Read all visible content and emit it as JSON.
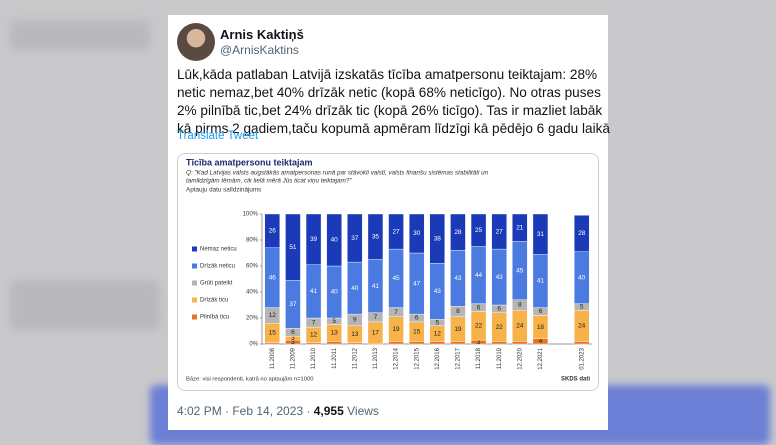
{
  "tweet": {
    "author": "Arnis Kaktiņš",
    "handle": "@ArnisKaktins",
    "text_lines": [
      "Lūk,kāda patlaban Latvijā izskatās tīcība amatpersonu teiktajam: 28%",
      "netic nemaz,bet 40% drīzāk netic (kopā 68% neticīgo). No otras puses",
      "2% pilnībā tic,bet 24% drīzāk tic (kopā 26% ticīgo). Tas ir mazliet labāk",
      "kā pirms 2 gadiem,taču kopumā apmēram līdzīgi kā pēdējo 6 gadu laikā"
    ],
    "translate": "Translate Tweet",
    "datetime": "4:02 PM · Feb 14, 2023 ·",
    "views": "4,955",
    "views_label": "Views"
  },
  "chart_data": {
    "type": "stacked-bar",
    "title": "Tīcība amatpersonu teiktajam",
    "question_lines": [
      "Q: \"Kad Latvijas valsts augstākās amatpersonas runā par stāvokli valstī, valsts finanšu sistēmas stabilitāti un",
      "tamlīdzīgām tēmām, cik lielā mērā Jūs ticat viņu teiktajam?\""
    ],
    "subtitle": "Aptauju datu salīdzinājums",
    "base_note": "Bāze: visi respondenti, katrā no aptaujām n=1000",
    "source": "SKDS dati",
    "categories": [
      "11.2008",
      "11.2009",
      "11.2010",
      "11.2011",
      "11.2012",
      "11.2013",
      "12.2014",
      "12.2015",
      "12.2016",
      "12.2017",
      "11.2018",
      "11.2019",
      "12.2020",
      "12.2021",
      null,
      "01.2023"
    ],
    "series": [
      {
        "name": "Nemaz neticu",
        "color": "#1b3ab8",
        "values": [
          26,
          51,
          39,
          40,
          37,
          35,
          27,
          30,
          38,
          28,
          25,
          27,
          21,
          31,
          null,
          28
        ]
      },
      {
        "name": "Drīzāk neticu",
        "color": "#4b7ae0",
        "values": [
          46,
          37,
          41,
          40,
          40,
          41,
          45,
          47,
          43,
          43,
          44,
          43,
          45,
          41,
          null,
          40
        ]
      },
      {
        "name": "Grūti pateikt",
        "color": "#b5b5b5",
        "values": [
          12,
          6,
          7,
          5,
          9,
          7,
          7,
          6,
          5,
          8,
          6,
          6,
          8,
          6,
          null,
          5
        ]
      },
      {
        "name": "Drīzāk ticu",
        "color": "#f7b24a",
        "values": [
          15,
          3,
          12,
          13,
          13,
          17,
          19,
          15,
          12,
          19,
          22,
          22,
          24,
          18,
          null,
          24
        ]
      },
      {
        "name": "Pilnībā ticu",
        "color": "#e8731c",
        "values": [
          1,
          3,
          1,
          2,
          1,
          0,
          2,
          2,
          2,
          2,
          3,
          2,
          2,
          4,
          null,
          2
        ]
      }
    ],
    "ylim": [
      0,
      100
    ],
    "yticks": [
      {
        "value": 0,
        "label": "0%"
      },
      {
        "value": 20,
        "label": "20%"
      },
      {
        "value": 40,
        "label": "40%"
      },
      {
        "value": 60,
        "label": "60%"
      },
      {
        "value": 80,
        "label": "80%"
      },
      {
        "value": 100,
        "label": "100%"
      }
    ]
  }
}
